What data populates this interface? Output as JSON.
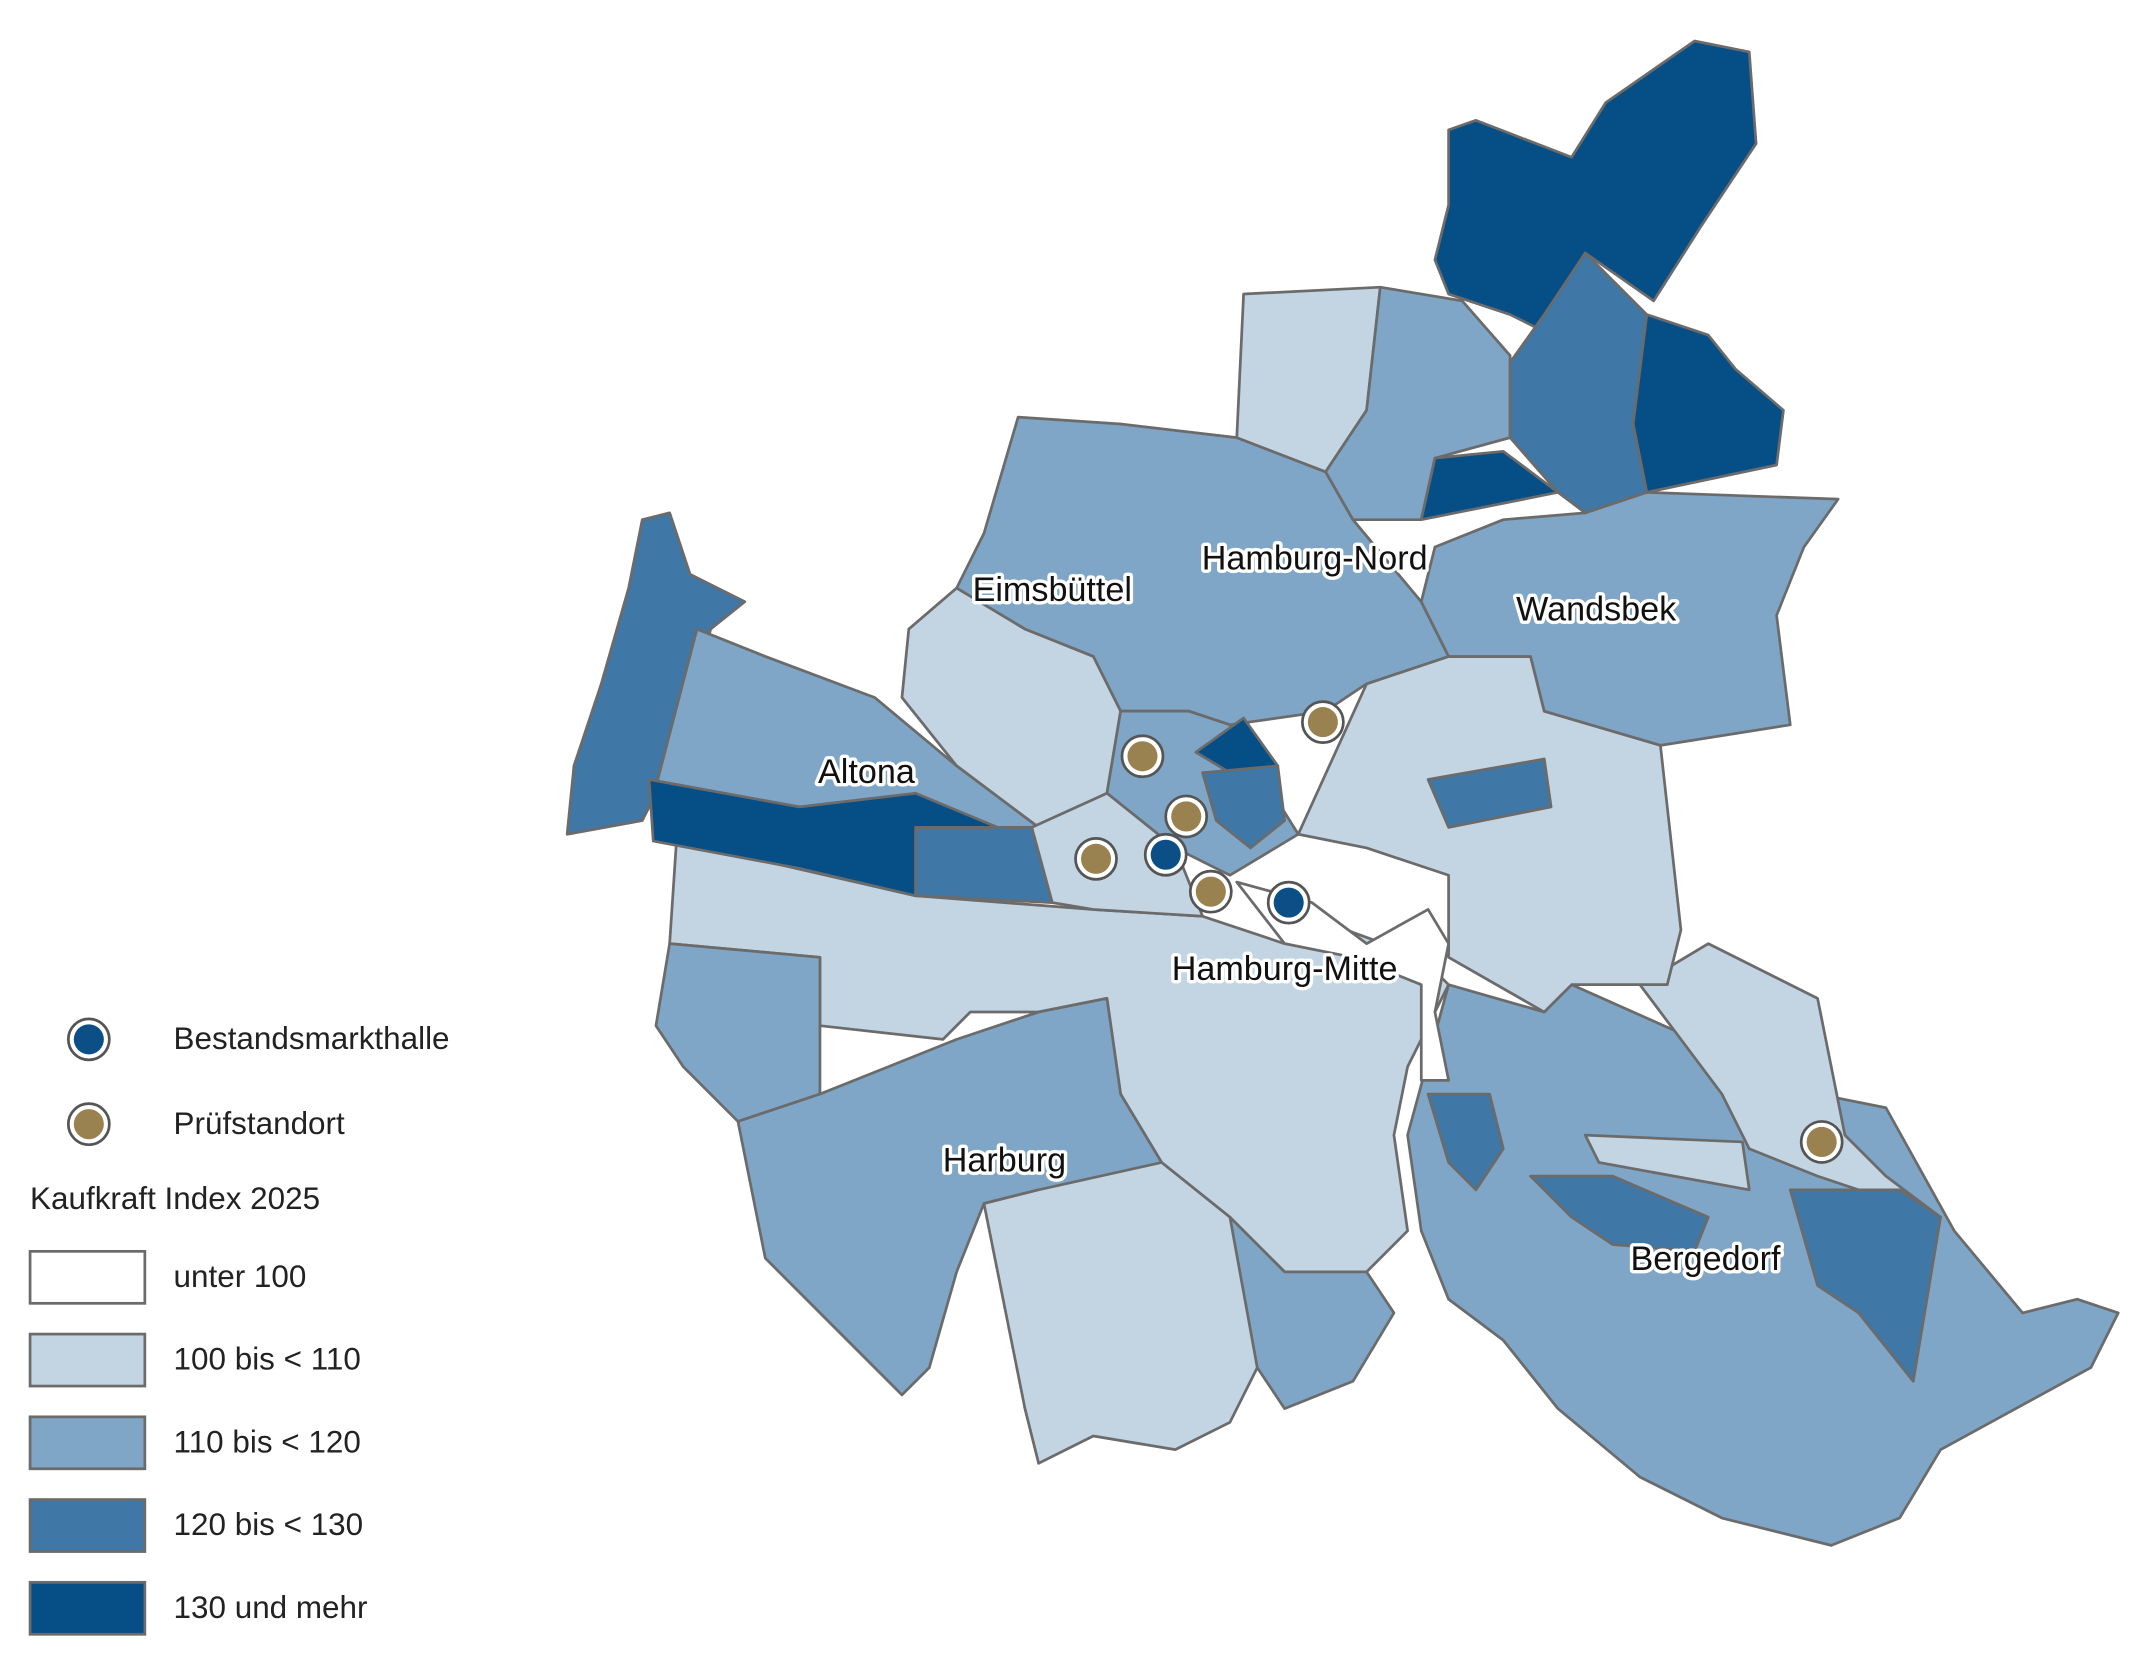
{
  "map": {
    "districts": [
      {
        "label": "Eimsbüttel"
      },
      {
        "label": "Hamburg-Nord"
      },
      {
        "label": "Wandsbek"
      },
      {
        "label": "Altona"
      },
      {
        "label": "Hamburg-Mitte"
      },
      {
        "label": "Harburg"
      },
      {
        "label": "Bergedorf"
      }
    ],
    "legend": {
      "markers": [
        {
          "label": "Bestandsmarkthalle",
          "color": "#0b4f86"
        },
        {
          "label": "Prüfstandort",
          "color": "#9a8150"
        }
      ],
      "title": "Kaufkraft Index 2025",
      "classes": [
        {
          "label": "unter 100",
          "color": "#ffffff"
        },
        {
          "label": "100 bis < 110",
          "color": "#c3d5e3"
        },
        {
          "label": "110 bis < 120",
          "color": "#7fa6c6"
        },
        {
          "label": "120 bis < 130",
          "color": "#3f77a6"
        },
        {
          "label": "130 und mehr",
          "color": "#054e86"
        }
      ]
    }
  }
}
